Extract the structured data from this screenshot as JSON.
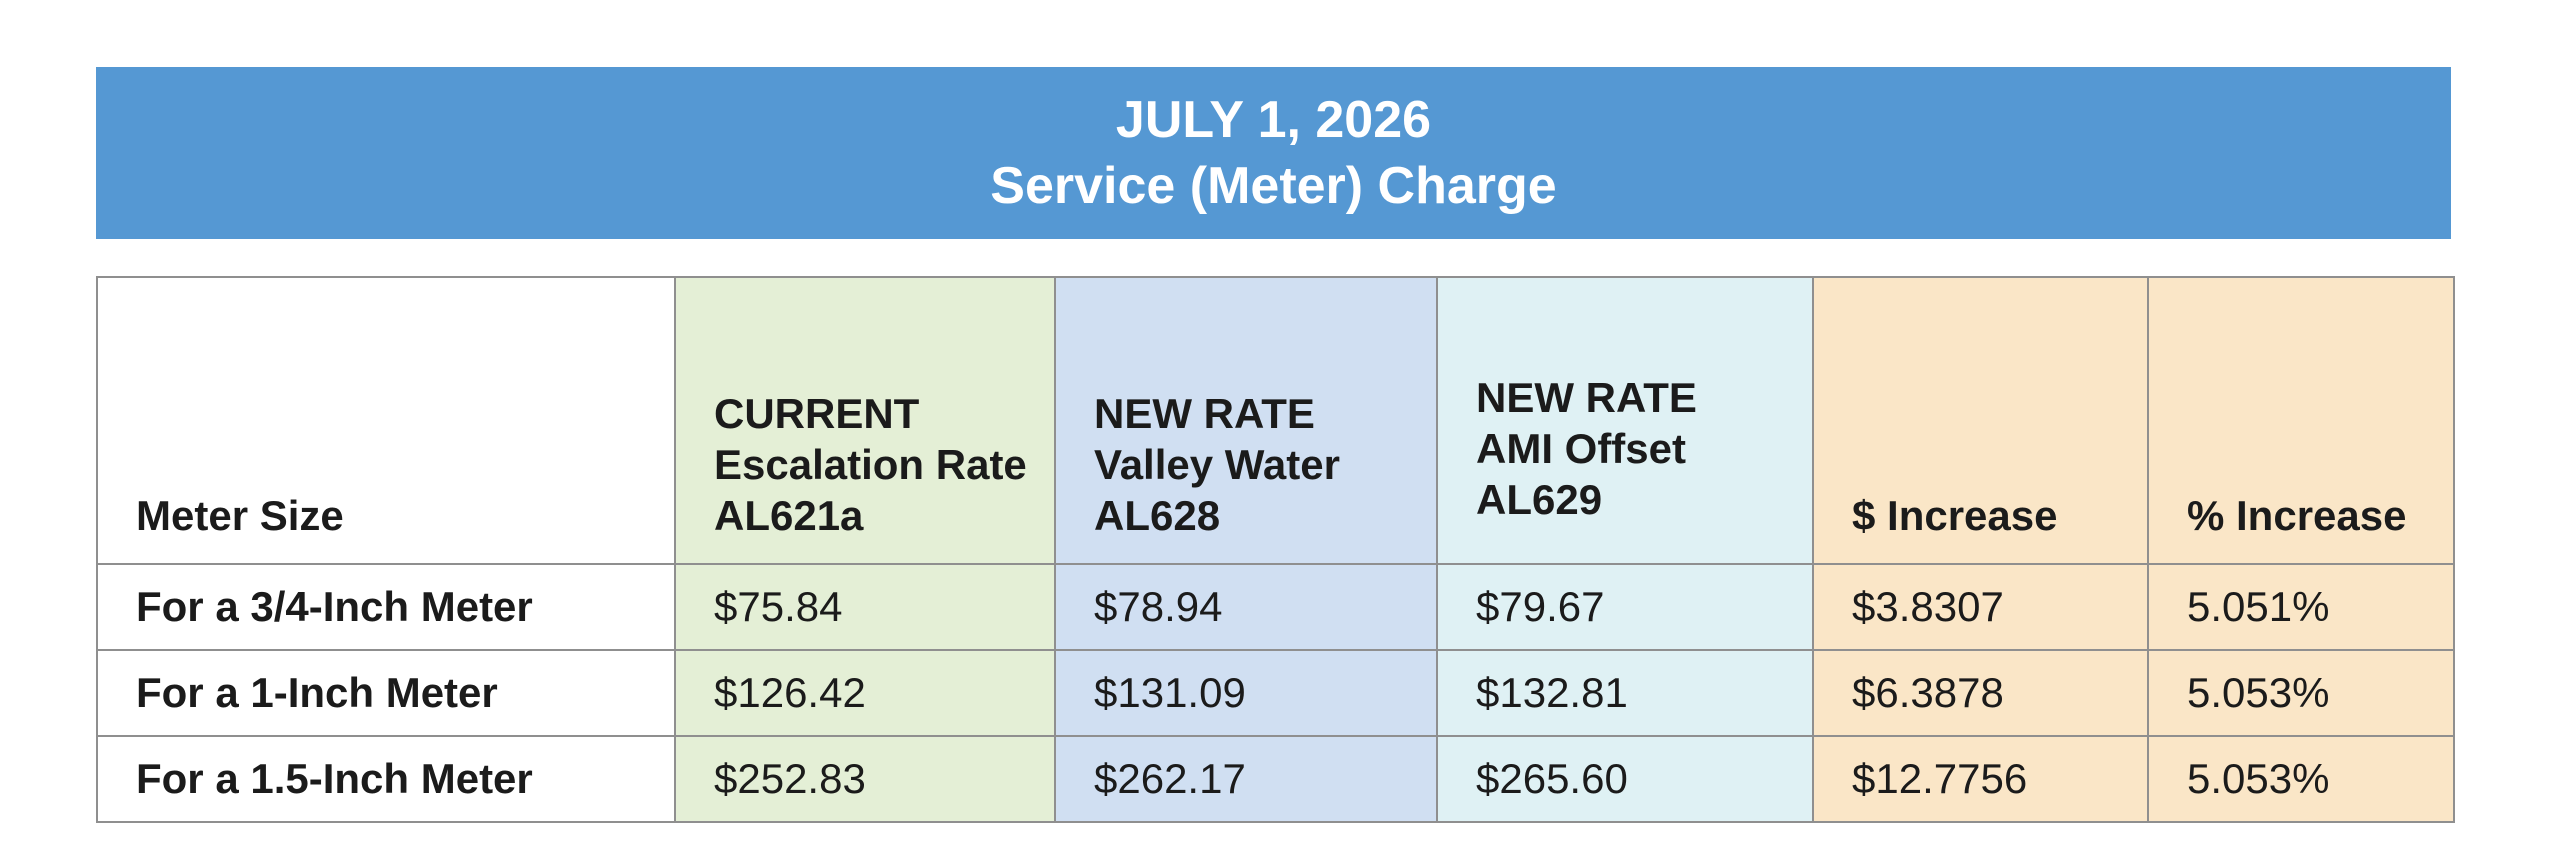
{
  "banner": {
    "date": "JULY 1, 2026",
    "title": "Service (Meter) Charge"
  },
  "colors": {
    "banner": "#5598d3",
    "current": "#e4efd6",
    "valley_water": "#d0dff2",
    "ami_offset": "#dff1f4",
    "increase": "#fae6c7"
  },
  "table": {
    "headers": {
      "meter_size": "Meter Size",
      "current": [
        "CURRENT",
        "Escalation Rate",
        "AL621a"
      ],
      "valley_water": [
        "NEW RATE",
        "Valley Water",
        "AL628"
      ],
      "ami_offset": [
        "NEW RATE",
        "AMI Offset",
        "AL629"
      ],
      "dollar_increase": "$ Increase",
      "percent_increase": "% Increase"
    },
    "rows": [
      {
        "meter_size": "For a 3/4-Inch Meter",
        "current": "$75.84",
        "valley_water": "$78.94",
        "ami_offset": "$79.67",
        "dollar_increase": "$3.8307",
        "percent_increase": "5.051%"
      },
      {
        "meter_size": "For a 1-Inch Meter",
        "current": "$126.42",
        "valley_water": "$131.09",
        "ami_offset": "$132.81",
        "dollar_increase": "$6.3878",
        "percent_increase": "5.053%"
      },
      {
        "meter_size": "For a 1.5-Inch Meter",
        "current": "$252.83",
        "valley_water": "$262.17",
        "ami_offset": "$265.60",
        "dollar_increase": "$12.7756",
        "percent_increase": "5.053%"
      }
    ]
  }
}
